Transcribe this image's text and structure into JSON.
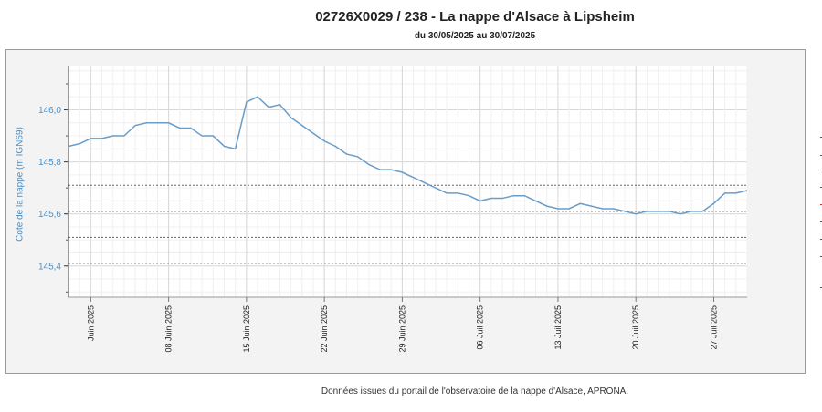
{
  "header": {
    "title": "02726X0029 / 238 - La nappe d'Alsace à Lipsheim",
    "subtitle": "du 30/05/2025 au 30/07/2025"
  },
  "footer": {
    "note": "Données issues du portail de l'observatoire de la nappe d'Alsace, APRONA."
  },
  "chart_data": {
    "type": "line",
    "title": "02726X0029 / 238 - La nappe d'Alsace à Lipsheim",
    "subtitle": "du 30/05/2025 au 30/07/2025",
    "xlabel": "",
    "ylabel": "Cote de la nappe (m IGN69)",
    "xlim": [
      "2025-05-30",
      "2025-07-30"
    ],
    "ylim": [
      145.28,
      146.17
    ],
    "y_ticks": [
      145.4,
      145.6,
      145.8,
      146.0
    ],
    "y_tick_labels": [
      "145,4",
      "145,6",
      "145,8",
      "146,0"
    ],
    "x_ticks": [
      {
        "date": "2025-06-01",
        "label": "Juin 2025"
      },
      {
        "date": "2025-06-08",
        "label": "08 Juin 2025"
      },
      {
        "date": "2025-06-15",
        "label": "15 Juin 2025"
      },
      {
        "date": "2025-06-22",
        "label": "22 Juin 2025"
      },
      {
        "date": "2025-06-29",
        "label": "29 Juin 2025"
      },
      {
        "date": "2025-07-06",
        "label": "06 Juil 2025"
      },
      {
        "date": "2025-07-13",
        "label": "13 Juil 2025"
      },
      {
        "date": "2025-07-20",
        "label": "20 Juil 2025"
      },
      {
        "date": "2025-07-27",
        "label": "27 Juil 2025"
      }
    ],
    "grid": true,
    "reference_lines": [
      145.71,
      145.61,
      145.51,
      145.41
    ],
    "line_color": "#6a9cc8",
    "series": [
      {
        "x": [
          "2025-05-30",
          "2025-05-31",
          "2025-06-01",
          "2025-06-02",
          "2025-06-03",
          "2025-06-04",
          "2025-06-05",
          "2025-06-06",
          "2025-06-07",
          "2025-06-08",
          "2025-06-09",
          "2025-06-10",
          "2025-06-11",
          "2025-06-12",
          "2025-06-13",
          "2025-06-14",
          "2025-06-15",
          "2025-06-16",
          "2025-06-17",
          "2025-06-18",
          "2025-06-19",
          "2025-06-20",
          "2025-06-21",
          "2025-06-22",
          "2025-06-23",
          "2025-06-24",
          "2025-06-25",
          "2025-06-26",
          "2025-06-27",
          "2025-06-28",
          "2025-06-29",
          "2025-06-30",
          "2025-07-01",
          "2025-07-02",
          "2025-07-03",
          "2025-07-04",
          "2025-07-05",
          "2025-07-06",
          "2025-07-07",
          "2025-07-08",
          "2025-07-09",
          "2025-07-10",
          "2025-07-11",
          "2025-07-12",
          "2025-07-13",
          "2025-07-14",
          "2025-07-15",
          "2025-07-16",
          "2025-07-17",
          "2025-07-18",
          "2025-07-19",
          "2025-07-20",
          "2025-07-21",
          "2025-07-22",
          "2025-07-23",
          "2025-07-24",
          "2025-07-25",
          "2025-07-26",
          "2025-07-27",
          "2025-07-28",
          "2025-07-29",
          "2025-07-30"
        ],
        "values": [
          145.86,
          145.87,
          145.89,
          145.89,
          145.9,
          145.9,
          145.94,
          145.95,
          145.95,
          145.95,
          145.93,
          145.93,
          145.9,
          145.9,
          145.86,
          145.85,
          146.03,
          146.05,
          146.01,
          146.02,
          145.97,
          145.94,
          145.91,
          145.88,
          145.86,
          145.83,
          145.82,
          145.79,
          145.77,
          145.77,
          145.76,
          145.74,
          145.72,
          145.7,
          145.68,
          145.68,
          145.67,
          145.65,
          145.66,
          145.66,
          145.67,
          145.67,
          145.65,
          145.63,
          145.62,
          145.62,
          145.64,
          145.63,
          145.62,
          145.62,
          145.61,
          145.6,
          145.61,
          145.61,
          145.61,
          145.6,
          145.61,
          145.61,
          145.64,
          145.68,
          145.68,
          145.69
        ]
      }
    ]
  }
}
